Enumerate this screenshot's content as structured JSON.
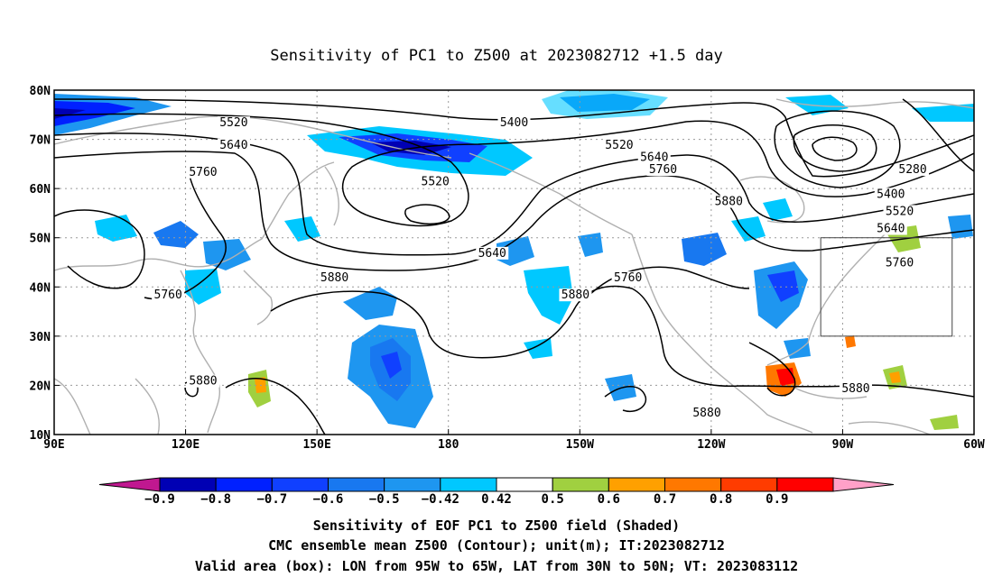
{
  "title": "Sensitivity of PC1 to Z500 at 2023082712 +1.5 day",
  "map": {
    "lon_range": [
      90,
      300
    ],
    "lat_range": [
      10,
      80
    ],
    "lon_ticks": [
      {
        "lon": 90,
        "label": "90E"
      },
      {
        "lon": 120,
        "label": "120E"
      },
      {
        "lon": 150,
        "label": "150E"
      },
      {
        "lon": 180,
        "label": "180"
      },
      {
        "lon": 210,
        "label": "150W"
      },
      {
        "lon": 240,
        "label": "120W"
      },
      {
        "lon": 270,
        "label": "90W"
      },
      {
        "lon": 300,
        "label": "60W"
      }
    ],
    "lat_ticks": [
      {
        "lat": 10,
        "label": "10N"
      },
      {
        "lat": 20,
        "label": "20N"
      },
      {
        "lat": 30,
        "label": "30N"
      },
      {
        "lat": 40,
        "label": "40N"
      },
      {
        "lat": 50,
        "label": "50N"
      },
      {
        "lat": 60,
        "label": "60N"
      },
      {
        "lat": 70,
        "label": "70N"
      },
      {
        "lat": 80,
        "label": "80N"
      }
    ],
    "valid_box": {
      "lon_min": 265,
      "lon_max": 295,
      "lat_min": 30,
      "lat_max": 50
    },
    "contour_labels": [
      {
        "text": "5520",
        "lon": 131,
        "lat": 73
      },
      {
        "text": "5400",
        "lon": 195,
        "lat": 73
      },
      {
        "text": "5640",
        "lon": 131,
        "lat": 68.5
      },
      {
        "text": "5520",
        "lon": 219,
        "lat": 68.5
      },
      {
        "text": "5640",
        "lon": 227,
        "lat": 66
      },
      {
        "text": "5760",
        "lon": 229,
        "lat": 63.5
      },
      {
        "text": "5280",
        "lon": 286,
        "lat": 63.5
      },
      {
        "text": "5760",
        "lon": 124,
        "lat": 63
      },
      {
        "text": "5520",
        "lon": 177,
        "lat": 61
      },
      {
        "text": "5880",
        "lon": 244,
        "lat": 57
      },
      {
        "text": "5400",
        "lon": 281,
        "lat": 58.5
      },
      {
        "text": "5520",
        "lon": 283,
        "lat": 55
      },
      {
        "text": "5640",
        "lon": 281,
        "lat": 51.5
      },
      {
        "text": "5640",
        "lon": 190,
        "lat": 46.5
      },
      {
        "text": "5760",
        "lon": 283,
        "lat": 44.5
      },
      {
        "text": "5880",
        "lon": 154,
        "lat": 41.5
      },
      {
        "text": "5760",
        "lon": 221,
        "lat": 41.5
      },
      {
        "text": "5760",
        "lon": 116,
        "lat": 38
      },
      {
        "text": "5880",
        "lon": 209,
        "lat": 38
      },
      {
        "text": "5880",
        "lon": 124,
        "lat": 20.5
      },
      {
        "text": "5880",
        "lon": 273,
        "lat": 19
      },
      {
        "text": "5880",
        "lon": 239,
        "lat": 14
      }
    ],
    "contour_description": "CMC ensemble mean Z500 height contours every 120 m"
  },
  "colorbar": {
    "colors": [
      "#c01890",
      "#0000b4",
      "#0020ff",
      "#1040ff",
      "#1878f0",
      "#1e96f0",
      "#00c8ff",
      "#ffffff",
      "#a0d040",
      "#ffa000",
      "#ff7800",
      "#ff3c00",
      "#ff0000",
      "#ffa0c8"
    ],
    "labels": [
      "−0.9",
      "−0.8",
      "−0.7",
      "−0.6",
      "−0.5",
      "−0.42",
      "0.42",
      "0.5",
      "0.6",
      "0.7",
      "0.8",
      "0.9"
    ]
  },
  "captions": [
    "Sensitivity of EOF PC1 to Z500 field (Shaded)",
    "CMC ensemble mean Z500 (Contour); unit(m); IT:2023082712",
    "Valid area (box): LON from 95W to 65W, LAT from 30N to 50N; VT: 2023083112"
  ]
}
